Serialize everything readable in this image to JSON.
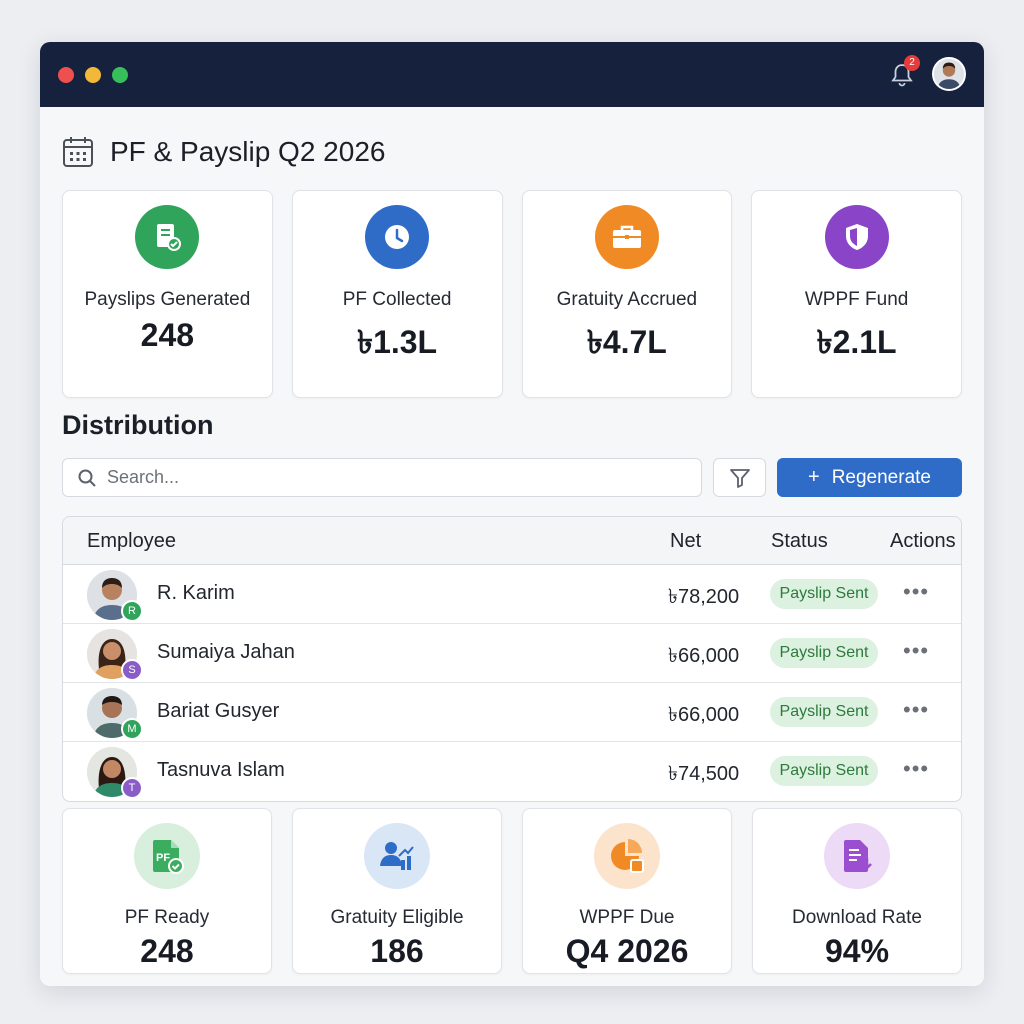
{
  "header": {
    "notification_count": "2",
    "title": "PF & Payslip Q2 2026"
  },
  "kpis": [
    {
      "label": "Payslips Generated",
      "value": "248",
      "icon": "document-check-icon",
      "color": "#2fa45a"
    },
    {
      "label": "PF Collected",
      "value": "৳1.3L",
      "icon": "clock-icon",
      "color": "#2f6cc8"
    },
    {
      "label": "Gratuity Accrued",
      "value": "৳4.7L",
      "icon": "briefcase-icon",
      "color": "#f08a24"
    },
    {
      "label": "WPPF Fund",
      "value": "৳2.1L",
      "icon": "shield-icon",
      "color": "#8a44c8"
    }
  ],
  "distribution": {
    "title": "Distribution",
    "search_placeholder": "Search...",
    "regenerate_label": "Regenerate",
    "columns": {
      "employee": "Employee",
      "net": "Net",
      "status": "Status",
      "actions": "Actions"
    },
    "rows": [
      {
        "name": "R. Karim",
        "initial": "R",
        "badge_color": "#2fa45a",
        "net": "৳78,200",
        "status": "Payslip Sent",
        "actions": "•••"
      },
      {
        "name": "Sumaiya Jahan",
        "initial": "S",
        "badge_color": "#8a5cc8",
        "net": "৳66,000",
        "status": "Payslip Sent",
        "actions": "•••"
      },
      {
        "name": "Bariat Gusyer",
        "initial": "M",
        "badge_color": "#2fa45a",
        "net": "৳66,000",
        "status": "Payslip Sent",
        "actions": "•••"
      },
      {
        "name": "Tasnuva Islam",
        "initial": "T",
        "badge_color": "#8a5cc8",
        "net": "৳74,500",
        "status": "Payslip Sent",
        "actions": "•••"
      }
    ]
  },
  "stats": [
    {
      "label": "PF Ready",
      "value": "248",
      "icon_text": "PF",
      "icon": "pf-document-icon",
      "color": "#2fa45a"
    },
    {
      "label": "Gratuity Eligible",
      "value": "186",
      "icon": "user-growth-icon",
      "color": "#2f6cc8"
    },
    {
      "label": "WPPF Due",
      "value": "Q4 2026",
      "icon": "pie-chart-icon",
      "color": "#f08a24"
    },
    {
      "label": "Download Rate",
      "value": "94%",
      "icon": "document-download-icon",
      "color": "#8a44c8"
    }
  ]
}
